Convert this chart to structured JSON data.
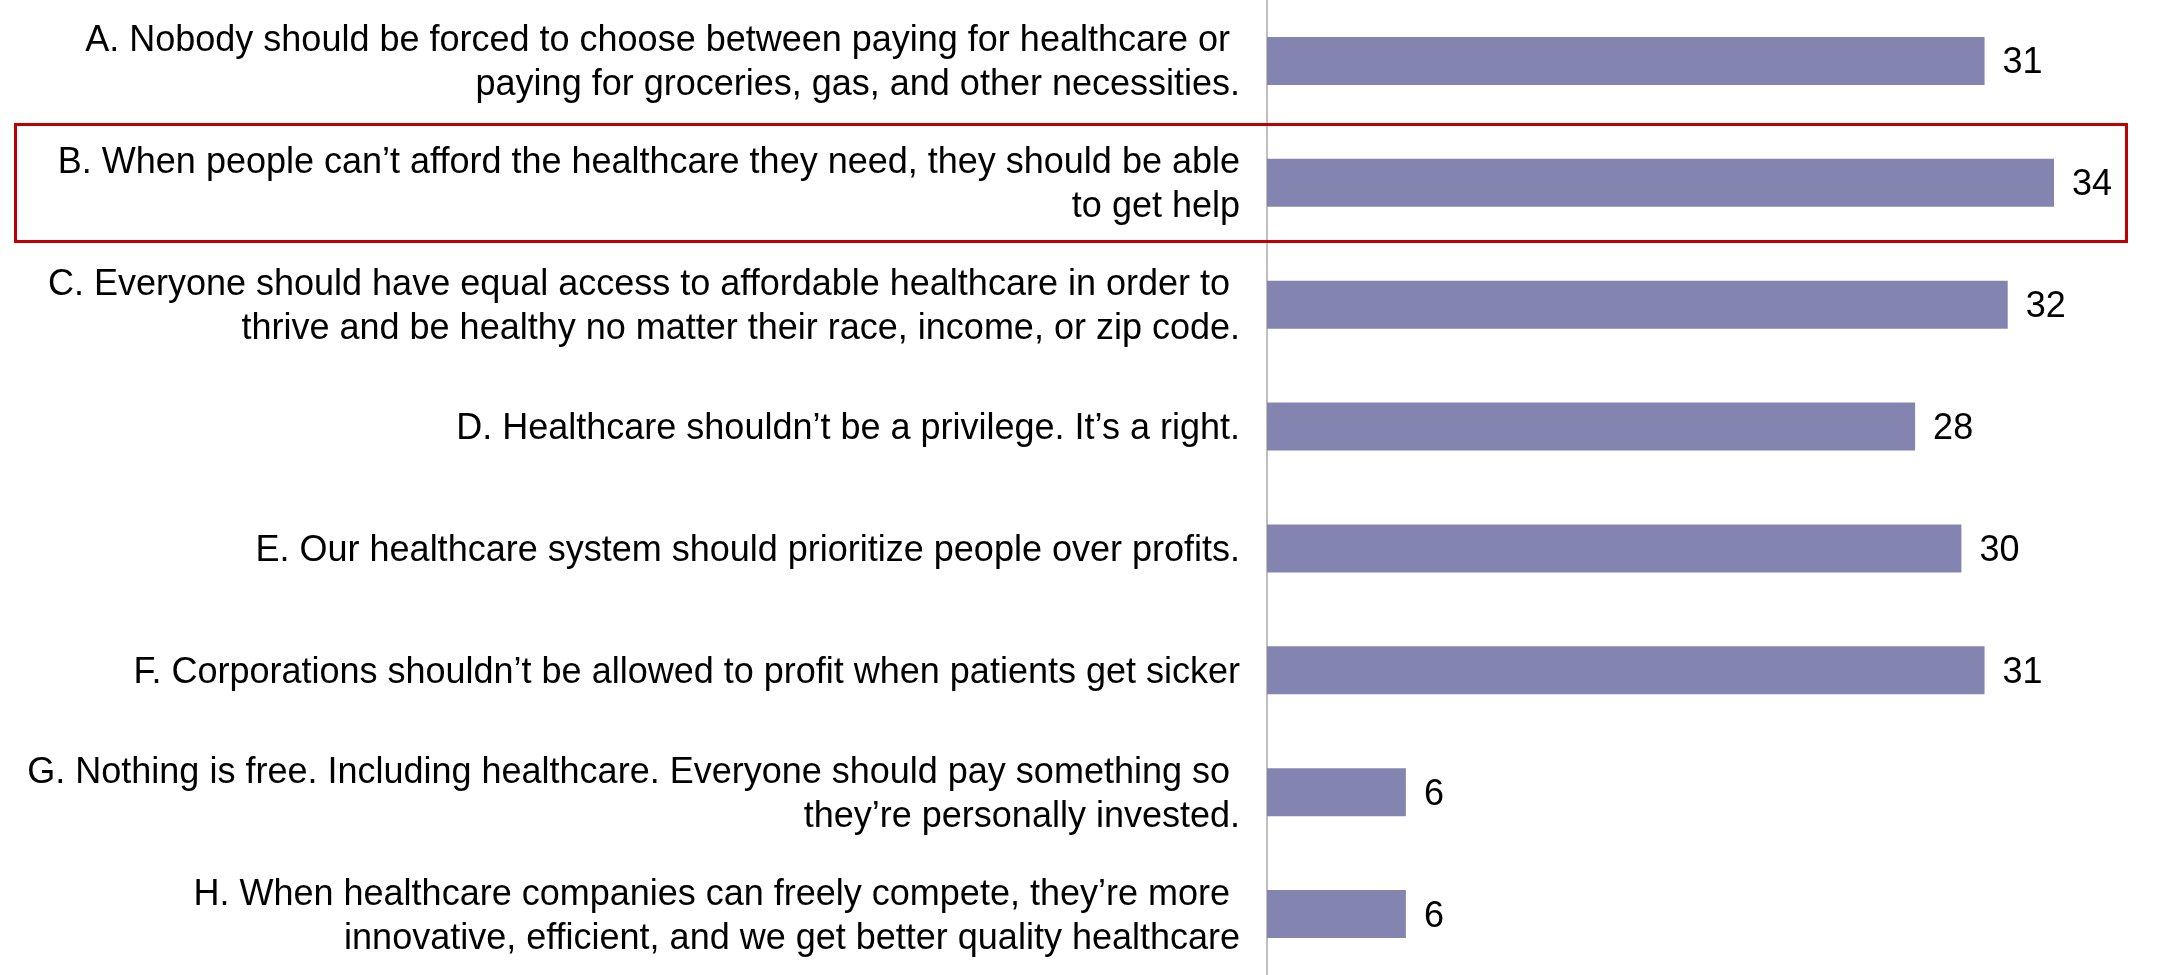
{
  "chart_data": {
    "type": "bar",
    "orientation": "horizontal",
    "data_labels": true,
    "categories": [
      "A. Nobody should be forced to choose between paying for healthcare or paying for groceries, gas, and other necessities.",
      "B. When people can’t afford the healthcare they need, they should be able to get help",
      "C. Everyone should have equal access to affordable healthcare in order to thrive and be healthy no matter their race, income, or zip code.",
      "D. Healthcare shouldn’t be a privilege. It’s a right.",
      "E. Our healthcare system should prioritize people over profits.",
      "F. Corporations shouldn’t be allowed to profit when patients get sicker",
      "G. Nothing is free. Including healthcare. Everyone should pay something so they’re personally invested.",
      "H. When healthcare companies can freely compete, they’re more innovative, efficient, and we get better quality healthcare"
    ],
    "values": [
      31,
      34,
      32,
      28,
      30,
      31,
      6,
      6
    ],
    "color": "#8484b0"
  }
}
